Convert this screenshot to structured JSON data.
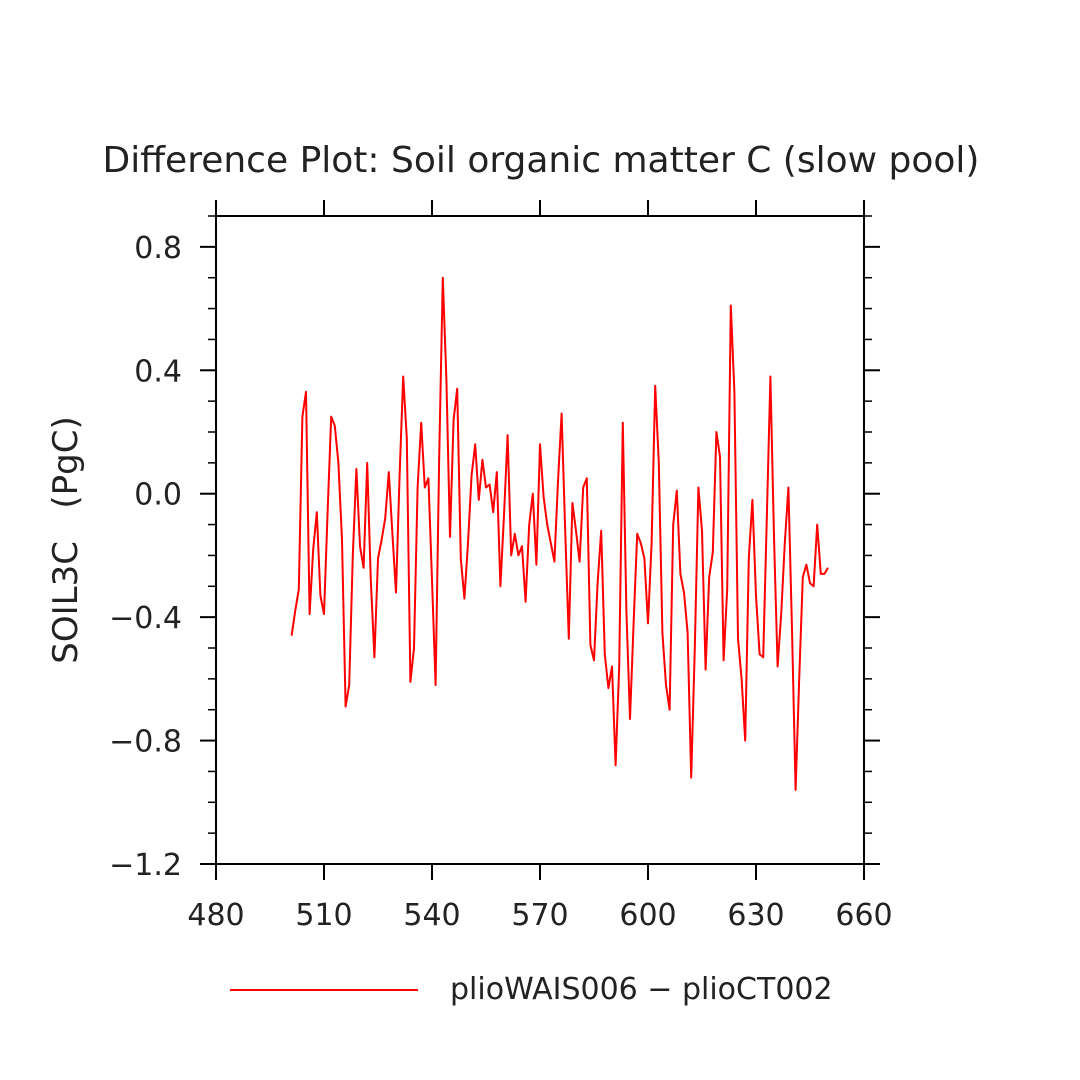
{
  "chart_data": {
    "type": "line",
    "title": "Difference Plot: Soil organic matter C (slow pool)",
    "xlabel": "",
    "ylabel": "SOIL3C   (PgC)",
    "xlim": [
      480,
      660
    ],
    "ylim": [
      -1.2,
      0.9
    ],
    "xticks": [
      480,
      510,
      540,
      570,
      600,
      630,
      660
    ],
    "xtick_labels": [
      "480",
      "510",
      "540",
      "570",
      "600",
      "630",
      "660"
    ],
    "yticks": [
      -1.2,
      -0.8,
      -0.4,
      0.0,
      0.4,
      0.8
    ],
    "ytick_labels": [
      "−1.2",
      "−0.8",
      "−0.4",
      "0.0",
      "0.4",
      "0.8"
    ],
    "grid": false,
    "legend": "bottom",
    "line_color": "#ff0000",
    "series": [
      {
        "name": "plioWAIS006 − plioCT002",
        "x": [
          501,
          502,
          503,
          504,
          505,
          506,
          507,
          508,
          509,
          510,
          511,
          512,
          513,
          514,
          515,
          516,
          517,
          518,
          519,
          520,
          521,
          522,
          523,
          524,
          525,
          526,
          527,
          528,
          529,
          530,
          531,
          532,
          533,
          534,
          535,
          536,
          537,
          538,
          539,
          540,
          541,
          542,
          543,
          544,
          545,
          546,
          547,
          548,
          549,
          550,
          551,
          552,
          553,
          554,
          555,
          556,
          557,
          558,
          559,
          560,
          561,
          562,
          563,
          564,
          565,
          566,
          567,
          568,
          569,
          570,
          571,
          572,
          573,
          574,
          575,
          576,
          577,
          578,
          579,
          580,
          581,
          582,
          583,
          584,
          585,
          586,
          587,
          588,
          589,
          590,
          591,
          592,
          593,
          594,
          595,
          596,
          597,
          598,
          599,
          600,
          601,
          602,
          603,
          604,
          605,
          606,
          607,
          608,
          609,
          610,
          611,
          612,
          613,
          614,
          615,
          616,
          617,
          618,
          619,
          620,
          621,
          622,
          623,
          624,
          625,
          626,
          627,
          628,
          629,
          630,
          631,
          632,
          633,
          634,
          635,
          636,
          637,
          638,
          639,
          640,
          641,
          642,
          643,
          644,
          645,
          646,
          647,
          648,
          649,
          650
        ],
        "y": [
          -0.46,
          -0.38,
          -0.31,
          0.25,
          0.33,
          -0.39,
          -0.18,
          -0.06,
          -0.33,
          -0.39,
          -0.06,
          0.25,
          0.22,
          0.1,
          -0.15,
          -0.69,
          -0.62,
          -0.2,
          0.08,
          -0.17,
          -0.24,
          0.1,
          -0.28,
          -0.53,
          -0.21,
          -0.15,
          -0.08,
          0.07,
          -0.13,
          -0.32,
          0.06,
          0.38,
          0.18,
          -0.61,
          -0.5,
          0.02,
          0.23,
          0.02,
          0.05,
          -0.28,
          -0.62,
          0.12,
          0.7,
          0.37,
          -0.14,
          0.24,
          0.34,
          -0.21,
          -0.34,
          -0.16,
          0.06,
          0.16,
          -0.02,
          0.11,
          0.02,
          0.03,
          -0.06,
          0.07,
          -0.3,
          -0.07,
          0.19,
          -0.2,
          -0.13,
          -0.2,
          -0.17,
          -0.35,
          -0.1,
          0.0,
          -0.23,
          0.16,
          -0.01,
          -0.1,
          -0.16,
          -0.22,
          0.04,
          0.26,
          -0.12,
          -0.47,
          -0.03,
          -0.12,
          -0.22,
          0.02,
          0.05,
          -0.49,
          -0.54,
          -0.29,
          -0.12,
          -0.52,
          -0.63,
          -0.56,
          -0.88,
          -0.56,
          0.23,
          -0.38,
          -0.73,
          -0.42,
          -0.13,
          -0.16,
          -0.21,
          -0.42,
          -0.16,
          0.35,
          0.1,
          -0.45,
          -0.62,
          -0.7,
          -0.1,
          0.01,
          -0.26,
          -0.32,
          -0.45,
          -0.92,
          -0.5,
          0.02,
          -0.12,
          -0.57,
          -0.27,
          -0.19,
          0.2,
          0.12,
          -0.54,
          -0.31,
          0.61,
          0.33,
          -0.47,
          -0.6,
          -0.8,
          -0.21,
          -0.02,
          -0.33,
          -0.52,
          -0.53,
          -0.08,
          0.38,
          -0.14,
          -0.56,
          -0.39,
          -0.16,
          0.02,
          -0.44,
          -0.96,
          -0.6,
          -0.27,
          -0.23,
          -0.29,
          -0.3,
          -0.1,
          -0.26,
          -0.26,
          -0.24
        ]
      }
    ]
  }
}
